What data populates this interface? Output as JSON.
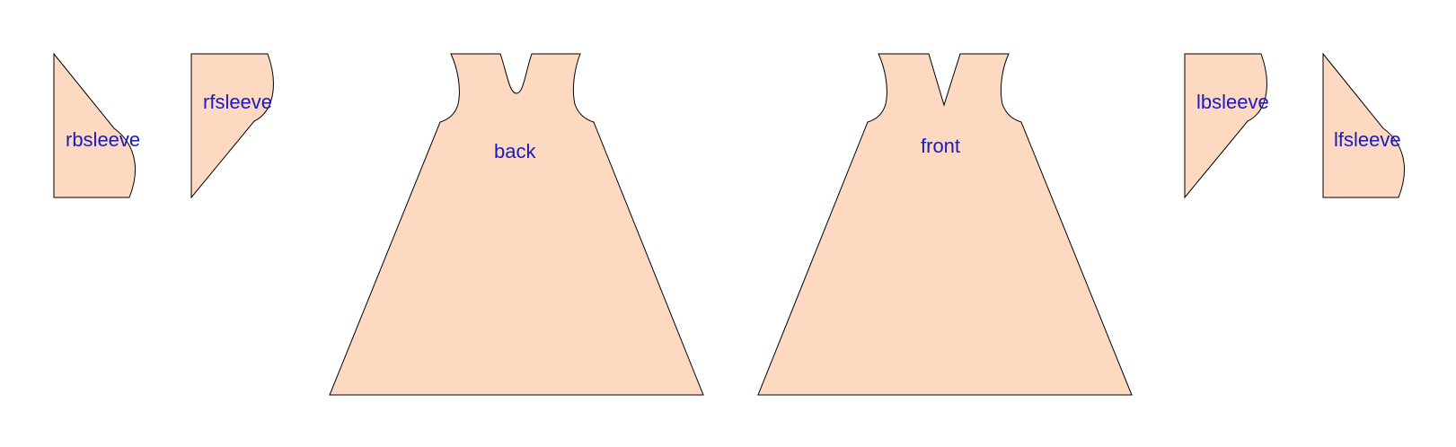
{
  "colors": {
    "fabric": "#FDD9C2",
    "outline": "#000000",
    "label": "#1A1ABF",
    "background": "#FFFFFF"
  },
  "pieces": [
    {
      "id": "rbsleeve",
      "label": "rbsleeve"
    },
    {
      "id": "rfsleeve",
      "label": "rfsleeve"
    },
    {
      "id": "back",
      "label": "back"
    },
    {
      "id": "front",
      "label": "front"
    },
    {
      "id": "lbsleeve",
      "label": "lbsleeve"
    },
    {
      "id": "lfsleeve",
      "label": "lfsleeve"
    }
  ]
}
